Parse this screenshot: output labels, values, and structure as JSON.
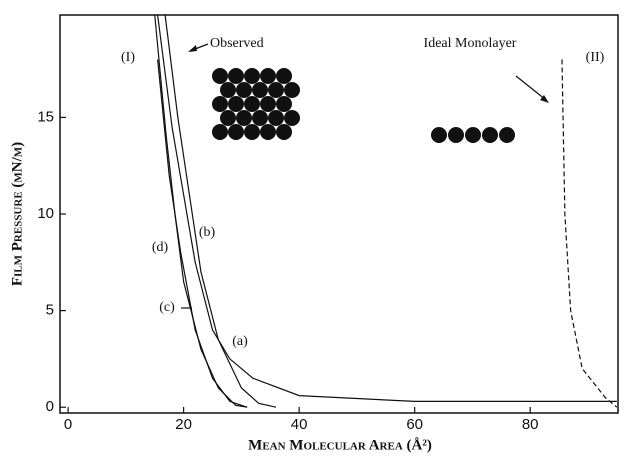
{
  "chart_data": {
    "type": "line",
    "x_label": "Mean Molecular Area (Å²)",
    "y_label": "Film Pressure (mN/m)",
    "xlim": [
      -1.4,
      95.2
    ],
    "ylim": [
      -0.3,
      20.3
    ],
    "xticks": [
      0,
      20,
      40,
      60,
      80
    ],
    "yticks": [
      0,
      5,
      10,
      15
    ],
    "grid": false,
    "series": [
      {
        "name": "(a)",
        "color": "#111",
        "style": "solid",
        "x": [
          15.5,
          18,
          20,
          22,
          25,
          28,
          32,
          40,
          60,
          95
        ],
        "values": [
          20.3,
          14.5,
          11,
          7.5,
          4,
          2.5,
          1.5,
          0.6,
          0.3,
          0.3
        ]
      },
      {
        "name": "(b)",
        "color": "#111",
        "style": "solid",
        "x": [
          16.8,
          19,
          21,
          23,
          26,
          30,
          33,
          36
        ],
        "values": [
          20.3,
          15,
          11,
          7,
          3.5,
          1,
          0.2,
          0
        ]
      },
      {
        "name": "(c)",
        "color": "#111",
        "style": "solid",
        "x": [
          15,
          17,
          18.5,
          20,
          23,
          26,
          29,
          31
        ],
        "values": [
          20.3,
          14,
          10,
          6.5,
          3,
          1,
          0.1,
          0
        ]
      },
      {
        "name": "(d)",
        "color": "#111",
        "style": "solid",
        "x": [
          15.5,
          17.5,
          19.5,
          22,
          25,
          28,
          31
        ],
        "values": [
          18,
          12,
          8,
          4,
          1.5,
          0.3,
          0
        ]
      },
      {
        "name": "(II)",
        "color": "#111",
        "style": "dashed",
        "x": [
          85.5,
          86,
          87,
          89,
          93,
          95
        ],
        "values": [
          18,
          10,
          5,
          2,
          0.5,
          0
        ]
      }
    ],
    "annotations": [
      "(I)",
      "Observed",
      "Ideal Monolayer"
    ]
  }
}
